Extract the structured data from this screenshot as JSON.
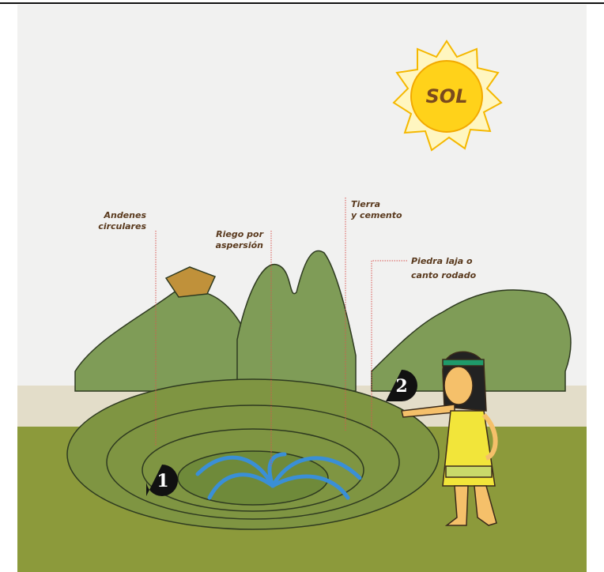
{
  "sun": {
    "label": "SOL"
  },
  "labels": [
    {
      "lines": [
        "Andenes",
        "circulares"
      ]
    },
    {
      "lines": [
        "Riego por",
        "aspersión"
      ]
    },
    {
      "lines": [
        "Tierra",
        "y cemento"
      ]
    },
    {
      "lines": [
        "Piedra laja o",
        "canto rodado"
      ]
    }
  ],
  "markers": [
    "1",
    "2"
  ]
}
